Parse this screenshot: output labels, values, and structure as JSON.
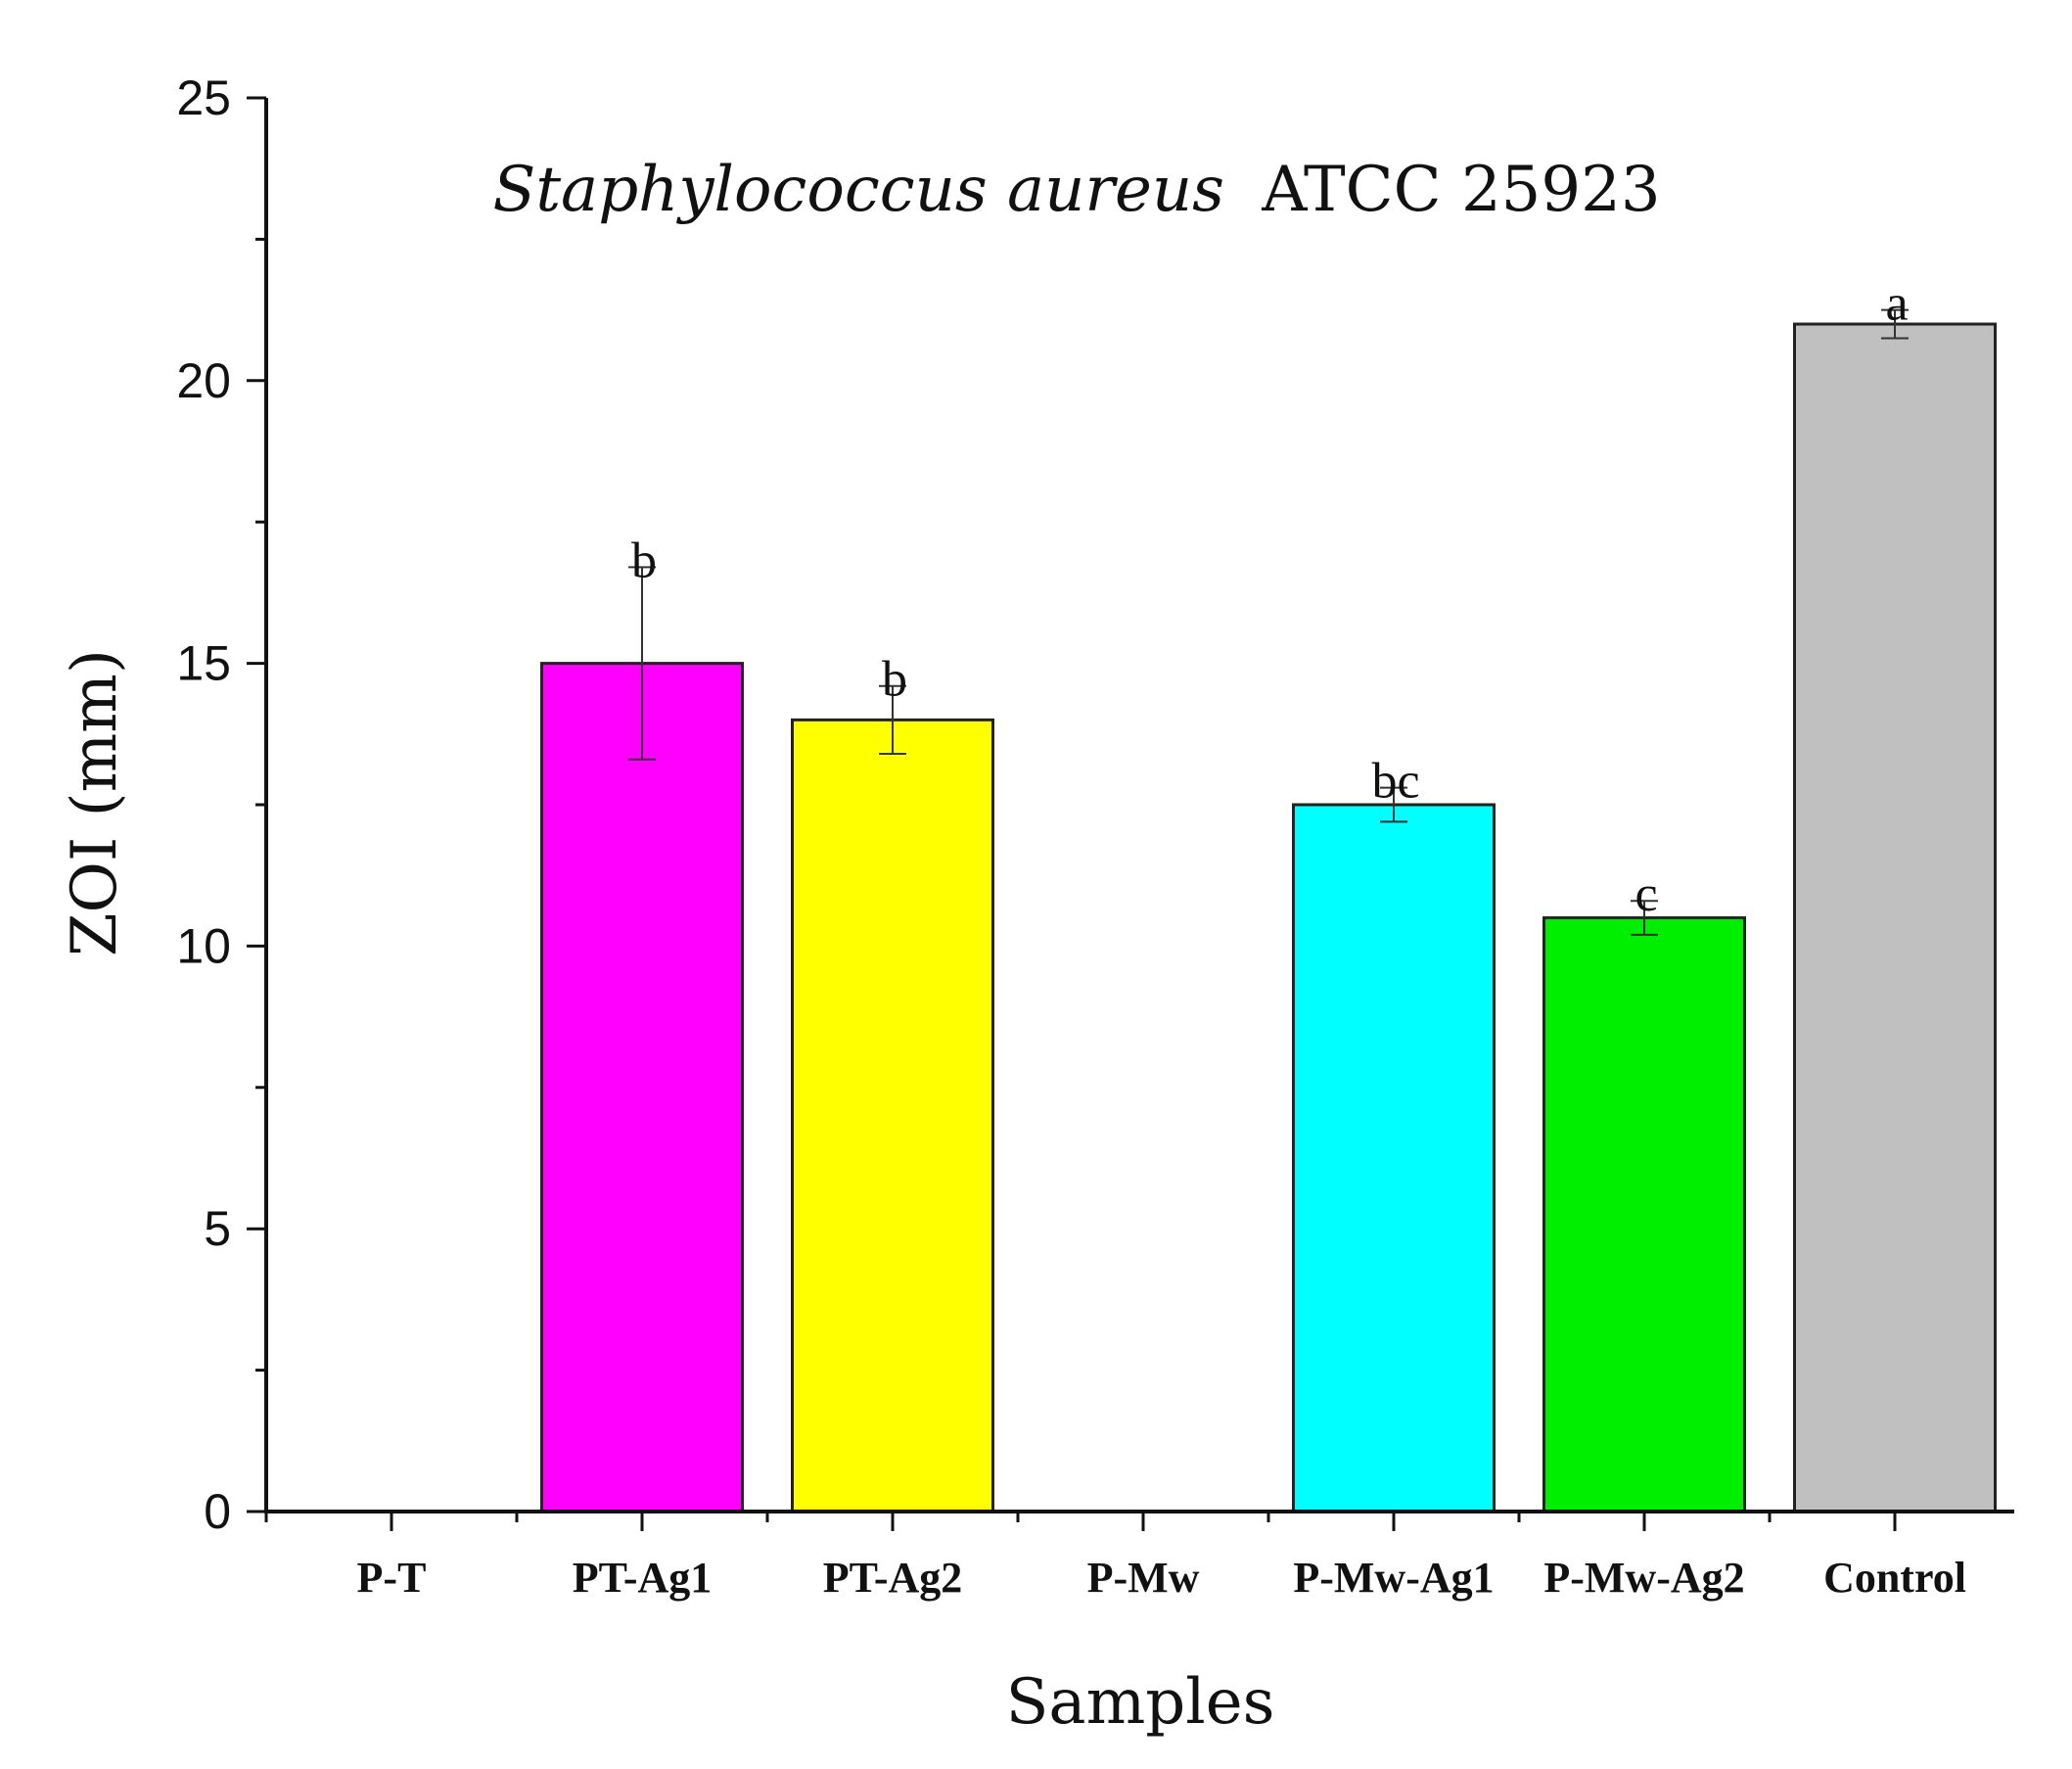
{
  "chart_data": {
    "type": "bar",
    "title_italic": "Staphylococcus aureus",
    "title_rest": "ATCC 25923",
    "xlabel": "Samples",
    "ylabel": "ZOI (mm)",
    "ylim": [
      0,
      25
    ],
    "yticks": [
      0,
      5,
      10,
      15,
      20,
      25
    ],
    "grid": false,
    "categories": [
      "P-T",
      "PT-Ag1",
      "PT-Ag2",
      "P-Mw",
      "P-Mw-Ag1",
      "P-Mw-Ag2",
      "Control"
    ],
    "values": [
      0,
      15,
      14,
      0,
      12.5,
      10.5,
      21
    ],
    "errors": [
      0,
      1.7,
      0.6,
      0,
      0.3,
      0.3,
      0.25
    ],
    "significance": [
      "",
      "b",
      "b",
      "",
      "bc",
      "c",
      "a"
    ],
    "colors": [
      "#ff00ff",
      "#ff00ff",
      "#ffff00",
      "#00ffff",
      "#00ffff",
      "#00ee00",
      "#c0c0c0"
    ]
  }
}
